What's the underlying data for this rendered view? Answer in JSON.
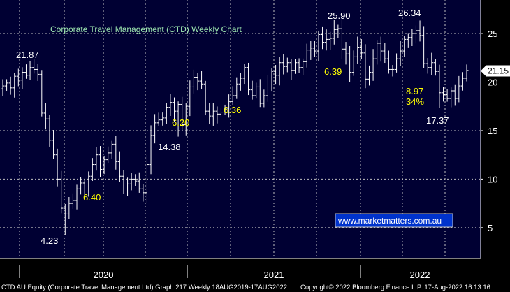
{
  "chart_data": {
    "type": "ohlc",
    "title": "Corporate Travel Management (CTD) Weekly Chart",
    "y_ticks": [
      5,
      10,
      15,
      20,
      25
    ],
    "ylim": [
      1.5,
      30.5
    ],
    "x_ticks": [
      "2020",
      "2021",
      "2022"
    ],
    "last_price_label": "21.15",
    "last_price": 21.15,
    "watermark": "www.marketmatters.com.au",
    "footer_left": "CTD AU Equity (Corporate Travel Management Ltd) Graph 217  Weekly 18AUG2019-17AUG2022",
    "footer_right": "Copyright© 2022 Bloomberg Finance L.P.      17-Aug-2022 16:13:16",
    "annotations": [
      {
        "text": "21.87",
        "value": 21.87,
        "color": "#ffffff"
      },
      {
        "text": "4.23",
        "value": 4.23,
        "color": "#ffffff"
      },
      {
        "text": "6.40",
        "value": 6.4,
        "color": "#ffff00"
      },
      {
        "text": "14.38",
        "value": 14.38,
        "color": "#ffffff"
      },
      {
        "text": "6.20",
        "value": 6.2,
        "color": "#ffff00"
      },
      {
        "text": "6.36",
        "value": 6.36,
        "color": "#ffff00"
      },
      {
        "text": "25.90",
        "value": 25.9,
        "color": "#ffffff"
      },
      {
        "text": "6.39",
        "value": 6.39,
        "color": "#ffff00"
      },
      {
        "text": "26.34",
        "value": 26.34,
        "color": "#ffffff"
      },
      {
        "text": "8.97",
        "value": 8.97,
        "color": "#ffff00"
      },
      {
        "text": "34%",
        "value": 34,
        "color": "#ffff00"
      },
      {
        "text": "17.37",
        "value": 17.37,
        "color": "#ffffff"
      }
    ],
    "closes": [
      19.6,
      19.9,
      19.4,
      20.6,
      20.2,
      21.0,
      20.7,
      21.5,
      21.3,
      20.8,
      16.8,
      16.2,
      14.0,
      12.5,
      10.0,
      7.0,
      6.4,
      7.5,
      7.8,
      9.0,
      9.6,
      9.2,
      10.3,
      11.5,
      12.5,
      11.0,
      12.0,
      12.7,
      13.6,
      11.8,
      10.3,
      9.2,
      9.5,
      10.0,
      9.8,
      9.0,
      8.6,
      11.5,
      14.5,
      15.8,
      16.1,
      16.3,
      17.4,
      17.9,
      17.0,
      17.7,
      15.6,
      17.5,
      19.5,
      20.5,
      20.1,
      19.8,
      17.0,
      16.5,
      17.0,
      16.7,
      16.9,
      17.3,
      18.0,
      18.6,
      19.8,
      20.4,
      21.5,
      19.2,
      18.6,
      19.5,
      17.8,
      18.6,
      20.0,
      21.1,
      20.7,
      22.0,
      21.6,
      22.0,
      21.2,
      22.0,
      21.5,
      22.1,
      23.3,
      23.5,
      23.2,
      24.9,
      24.1,
      24.4,
      24.5,
      25.4,
      25.5,
      23.4,
      22.9,
      21.0,
      22.6,
      23.6,
      23.0,
      20.3,
      21.0,
      22.4,
      24.0,
      23.2,
      22.4,
      21.3,
      21.3,
      22.4,
      23.2,
      24.4,
      24.6,
      25.0,
      25.3,
      24.8,
      21.9,
      21.5,
      22.0,
      21.1,
      18.9,
      18.7,
      18.3,
      19.1,
      18.3,
      19.6,
      20.4,
      21.2
    ]
  }
}
